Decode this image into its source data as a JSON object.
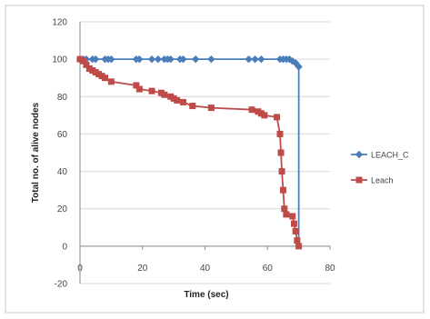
{
  "chart_data": {
    "type": "line",
    "title": "",
    "xlabel": "Time (sec)",
    "ylabel": "Total no. of alive nodes",
    "xlim": [
      0,
      80
    ],
    "ylim": [
      -20,
      120
    ],
    "x_ticks": [
      "0",
      "20",
      "40",
      "60",
      "80"
    ],
    "y_ticks": [
      "-20",
      "0",
      "20",
      "40",
      "60",
      "80",
      "100",
      "120"
    ],
    "grid": "horizontal",
    "legend_position": "right",
    "series": [
      {
        "name": "LEACH_C",
        "color": "#4a7ebb",
        "marker": "diamond",
        "x": [
          0,
          1,
          2,
          4,
          5,
          8,
          9,
          10,
          18,
          19,
          23,
          25,
          27,
          28,
          29,
          32,
          33,
          37,
          42,
          54,
          56,
          58,
          64,
          65,
          66,
          67,
          68,
          69,
          70,
          70
        ],
        "y": [
          100,
          100,
          100,
          100,
          100,
          100,
          100,
          100,
          100,
          100,
          100,
          100,
          100,
          100,
          100,
          100,
          100,
          100,
          100,
          100,
          100,
          100,
          100,
          100,
          100,
          100,
          99,
          98,
          96,
          0
        ]
      },
      {
        "name": "Leach",
        "color": "#be4b48",
        "marker": "square",
        "x": [
          0,
          1,
          2,
          3,
          4,
          5,
          6,
          7,
          8,
          10,
          18,
          19,
          23,
          26,
          27,
          29,
          30,
          31,
          33,
          36,
          42,
          55,
          57,
          58,
          59,
          63,
          64,
          64.3,
          64.6,
          65,
          65.4,
          66,
          68,
          68.5,
          69,
          69.5,
          70
        ],
        "y": [
          100,
          99,
          97,
          95,
          94,
          93,
          92,
          91,
          90,
          88,
          86,
          84,
          83,
          82,
          81,
          80,
          79,
          78,
          77,
          75,
          74,
          73,
          72,
          71,
          70,
          69,
          60,
          50,
          40,
          30,
          20,
          17,
          16,
          12,
          8,
          3,
          0
        ]
      }
    ]
  }
}
